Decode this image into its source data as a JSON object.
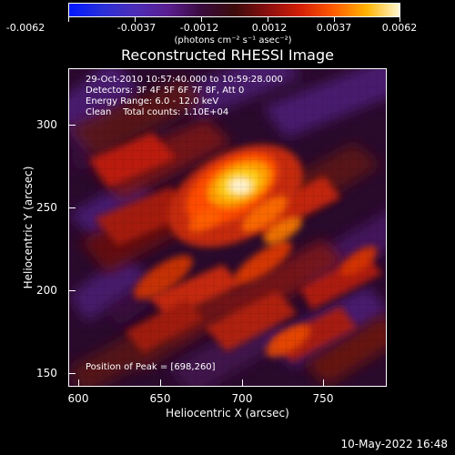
{
  "colorbar": {
    "min": -0.0062,
    "max": 0.0062,
    "labels": [
      "-0.0062",
      "-0.0037",
      "-0.0012",
      "0.0012",
      "0.0037",
      "0.0062"
    ],
    "units": "(photons cm⁻² s⁻¹ asec⁻²)"
  },
  "title": "Reconstructed RHESSI Image",
  "info": {
    "line1": "29-Oct-2010 10:57:40.000 to 10:59:28.000",
    "line2": "Detectors: 3F 4F 5F 6F 7F 8F, Att 0",
    "line3": "Energy Range: 6.0 - 12.0 keV",
    "line4": "Clean    Total counts: 1.10E+04"
  },
  "peak": "Position of Peak = [698,260]",
  "x_axis": {
    "title": "Heliocentric X (arcsec)",
    "labels": [
      "600",
      "650",
      "700",
      "750"
    ]
  },
  "y_axis": {
    "title": "Heliocentric Y (arcsec)",
    "labels": [
      "300",
      "250",
      "200",
      "150"
    ]
  },
  "footer": {
    "date": "10-May-2022 16:48"
  },
  "colors": {
    "background": "#000000",
    "text": "#ffffff",
    "negative": "#5a1e8f",
    "low": "#2a0a2c",
    "mid": "#8a0f0f",
    "high": "#ff5b00",
    "peak": "#fff7d2"
  }
}
